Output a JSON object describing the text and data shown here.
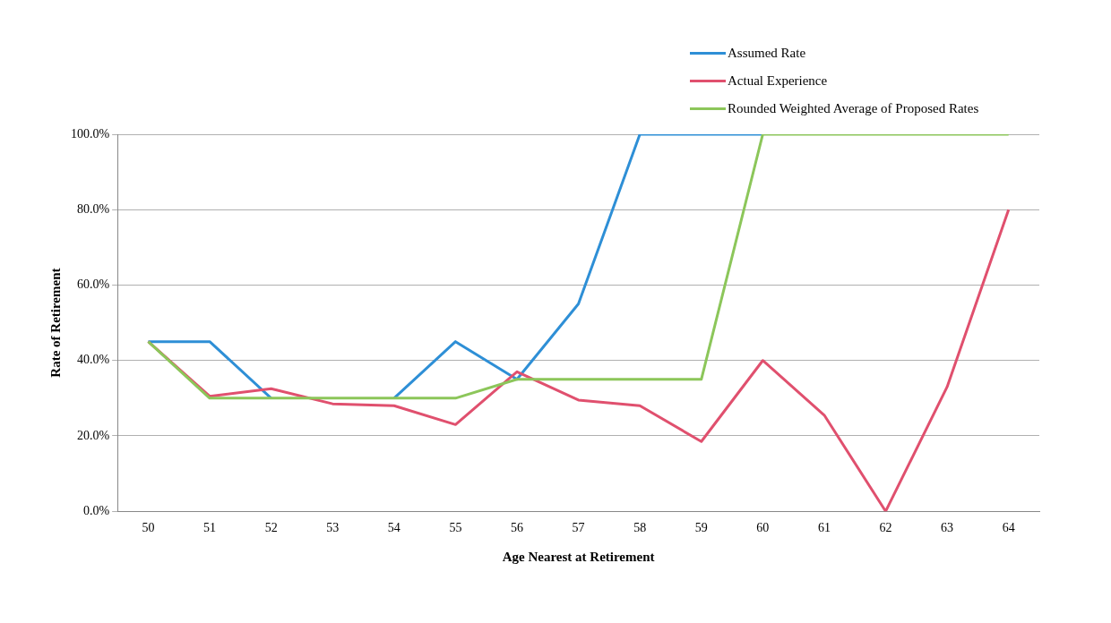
{
  "chart_data": {
    "type": "line",
    "xlabel": "Age Nearest at Retirement",
    "ylabel": "Rate of Retirement",
    "categories": [
      "50",
      "51",
      "52",
      "53",
      "54",
      "55",
      "56",
      "57",
      "58",
      "59",
      "60",
      "61",
      "62",
      "63",
      "64"
    ],
    "series": [
      {
        "name": "Assumed Rate",
        "color": "#2e8fd6",
        "values": [
          45,
          45,
          30,
          null,
          30,
          45,
          35,
          55,
          100,
          100,
          100,
          null,
          null,
          null,
          null
        ]
      },
      {
        "name": "Actual Experience",
        "color": "#e0506e",
        "values": [
          45,
          30.5,
          32.5,
          28.5,
          28,
          23,
          37,
          29.5,
          28,
          18.5,
          40,
          25.5,
          0,
          33,
          80
        ]
      },
      {
        "name": "Rounded Weighted Average of Proposed Rates",
        "color": "#8cc65a",
        "values": [
          45,
          30,
          30,
          30,
          30,
          30,
          35,
          35,
          35,
          35,
          100,
          100,
          100,
          100,
          100
        ]
      }
    ],
    "ylim": [
      0,
      100
    ],
    "yticks": [
      {
        "value": 0,
        "label": "0.0%"
      },
      {
        "value": 20,
        "label": "20.0%"
      },
      {
        "value": 40,
        "label": "40.0%"
      },
      {
        "value": 60,
        "label": "60.0%"
      },
      {
        "value": 80,
        "label": "80.0%"
      },
      {
        "value": 100,
        "label": "100.0%"
      }
    ],
    "grid": "y",
    "legend": "top right",
    "marker": "none",
    "line_style": "solid"
  }
}
